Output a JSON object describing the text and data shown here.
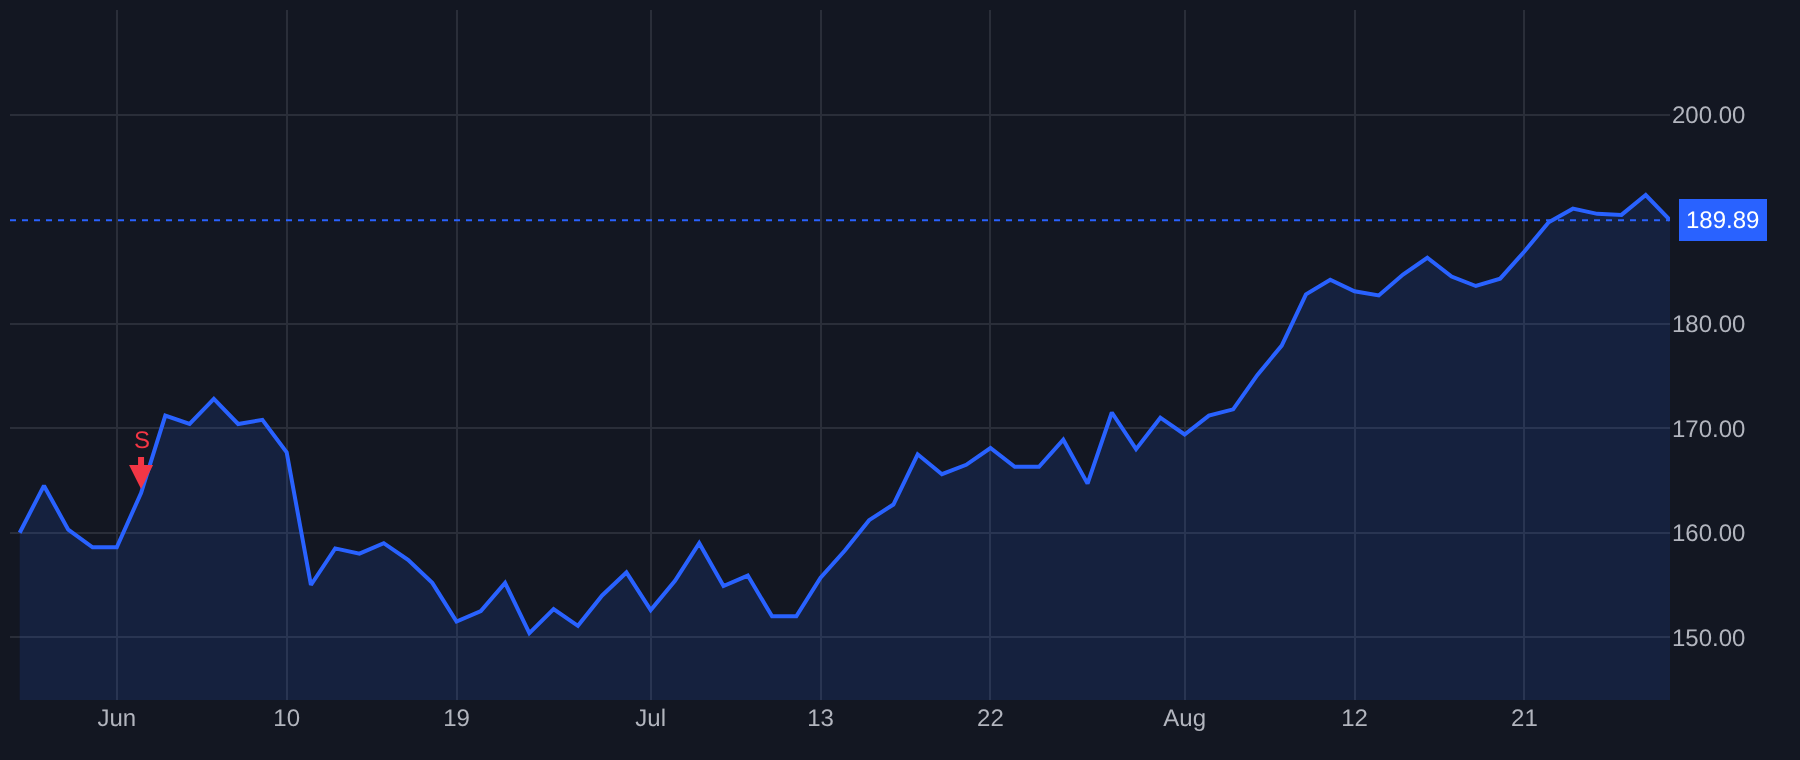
{
  "chart_data": {
    "type": "area",
    "categories": [
      null,
      null,
      null,
      null,
      "Jun",
      null,
      null,
      null,
      null,
      null,
      null,
      "10",
      null,
      null,
      null,
      null,
      null,
      null,
      "19",
      null,
      null,
      null,
      null,
      null,
      null,
      null,
      "Jul",
      null,
      null,
      null,
      null,
      null,
      null,
      "13",
      null,
      null,
      null,
      null,
      null,
      null,
      "22",
      null,
      null,
      null,
      null,
      null,
      null,
      null,
      "Aug",
      null,
      null,
      null,
      null,
      null,
      null,
      "12",
      null,
      null,
      null,
      null,
      null,
      null,
      "21",
      null,
      null,
      null,
      null,
      null,
      null
    ],
    "series": [
      {
        "color": "#2962ff",
        "values": [
          160.0,
          164.5,
          160.3,
          158.6,
          158.6,
          163.8,
          171.2,
          170.4,
          172.8,
          170.4,
          170.8,
          167.7,
          155.0,
          158.5,
          158.0,
          159.0,
          157.4,
          155.2,
          151.5,
          152.5,
          155.2,
          150.4,
          152.7,
          151.1,
          154.0,
          156.2,
          152.6,
          155.4,
          159.0,
          154.9,
          155.9,
          152.0,
          152.0,
          155.7,
          158.3,
          161.2,
          162.7,
          167.5,
          165.6,
          166.5,
          168.1,
          166.3,
          166.3,
          168.9,
          164.7,
          171.5,
          168.0,
          171.0,
          169.4,
          171.2,
          171.8,
          175.1,
          177.9,
          182.8,
          184.2,
          183.1,
          182.7,
          184.7,
          186.3,
          184.5,
          183.6,
          184.3,
          186.9,
          189.7,
          191.0,
          190.5,
          190.4,
          192.3,
          189.9
        ]
      }
    ],
    "ylim": [
      144,
      210
    ],
    "yticks": [
      {
        "value": 150,
        "label": "150.00"
      },
      {
        "value": 160,
        "label": "160.00"
      },
      {
        "value": 170,
        "label": "170.00"
      },
      {
        "value": 180,
        "label": "180.00"
      },
      {
        "value": 200,
        "label": "200.00"
      }
    ],
    "ref_lines": [
      {
        "axis": "y",
        "value": 189.89,
        "label": "189.89",
        "color": "#2962ff",
        "line_style": "dotted"
      }
    ],
    "annotations": [
      {
        "text": "S",
        "y": 163.8
      }
    ],
    "grid": true,
    "marker": "none"
  }
}
